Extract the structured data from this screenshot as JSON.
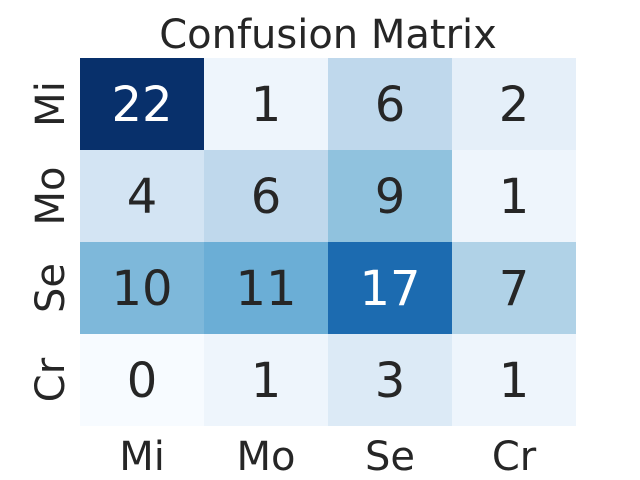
{
  "chart_data": {
    "type": "heatmap",
    "title": "Confusion Matrix",
    "xlabel": "",
    "ylabel": "",
    "x_categories": [
      "Mi",
      "Mo",
      "Se",
      "Cr"
    ],
    "y_categories": [
      "Mi",
      "Mo",
      "Se",
      "Cr"
    ],
    "values": [
      [
        22,
        1,
        6,
        2
      ],
      [
        4,
        6,
        9,
        1
      ],
      [
        10,
        11,
        17,
        7
      ],
      [
        0,
        1,
        3,
        1
      ]
    ],
    "colormap": "Blues",
    "vmin": 0,
    "vmax": 22,
    "colorbar": false
  }
}
